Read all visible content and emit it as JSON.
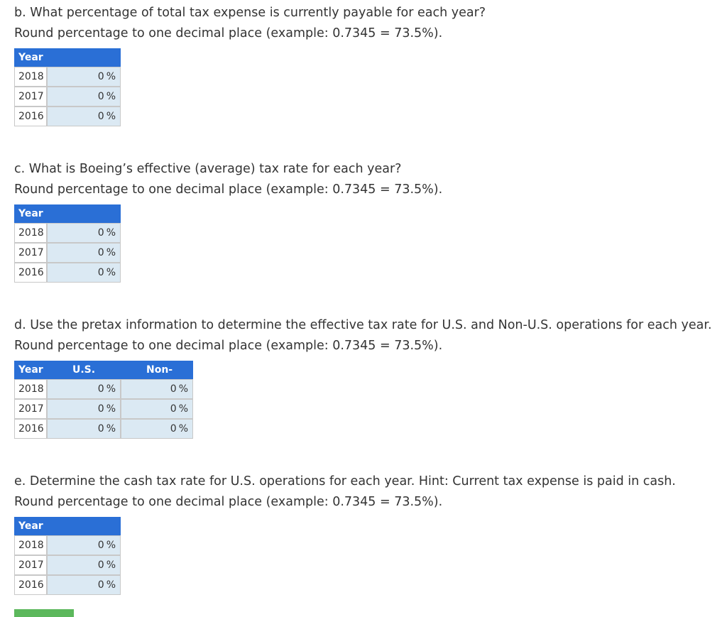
{
  "sections": [
    {
      "question": "b. What percentage of total tax expense is currently payable for each year?",
      "instruction": "Round percentage to one decimal place (example: 0.7345 = 73.5%).",
      "table": {
        "headers": [
          "Year"
        ],
        "rows": [
          {
            "year": "2018",
            "cells": [
              {
                "value": 0,
                "unit": "%"
              }
            ]
          },
          {
            "year": "2017",
            "cells": [
              {
                "value": 0,
                "unit": "%"
              }
            ]
          },
          {
            "year": "2016",
            "cells": [
              {
                "value": 0,
                "unit": "%"
              }
            ]
          }
        ]
      }
    },
    {
      "question": "c. What is Boeing’s effective (average) tax rate for each year?",
      "instruction": "Round percentage to one decimal place (example: 0.7345 = 73.5%).",
      "table": {
        "headers": [
          "Year"
        ],
        "rows": [
          {
            "year": "2018",
            "cells": [
              {
                "value": 0,
                "unit": "%"
              }
            ]
          },
          {
            "year": "2017",
            "cells": [
              {
                "value": 0,
                "unit": "%"
              }
            ]
          },
          {
            "year": "2016",
            "cells": [
              {
                "value": 0,
                "unit": "%"
              }
            ]
          }
        ]
      }
    },
    {
      "question": "d. Use the pretax information to determine the effective tax rate for U.S. and Non-U.S. operations for each year.",
      "instruction": "Round percentage to one decimal place (example: 0.7345 = 73.5%).",
      "table": {
        "headers": [
          "Year",
          "U.S.",
          "Non-U.S."
        ],
        "rows": [
          {
            "year": "2018",
            "cells": [
              {
                "value": 0,
                "unit": "%"
              },
              {
                "value": 0,
                "unit": "%"
              }
            ]
          },
          {
            "year": "2017",
            "cells": [
              {
                "value": 0,
                "unit": "%"
              },
              {
                "value": 0,
                "unit": "%"
              }
            ]
          },
          {
            "year": "2016",
            "cells": [
              {
                "value": 0,
                "unit": "%"
              },
              {
                "value": 0,
                "unit": "%"
              }
            ]
          }
        ]
      }
    },
    {
      "question": "e. Determine the cash tax rate for U.S. operations for each year. Hint: Current tax expense is paid in cash.",
      "instruction": "Round percentage to one decimal place (example: 0.7345 = 73.5%).",
      "table": {
        "headers": [
          "Year"
        ],
        "rows": [
          {
            "year": "2018",
            "cells": [
              {
                "value": 0,
                "unit": "%"
              }
            ]
          },
          {
            "year": "2017",
            "cells": [
              {
                "value": 0,
                "unit": "%"
              }
            ]
          },
          {
            "year": "2016",
            "cells": [
              {
                "value": 0,
                "unit": "%"
              }
            ]
          }
        ]
      }
    }
  ]
}
